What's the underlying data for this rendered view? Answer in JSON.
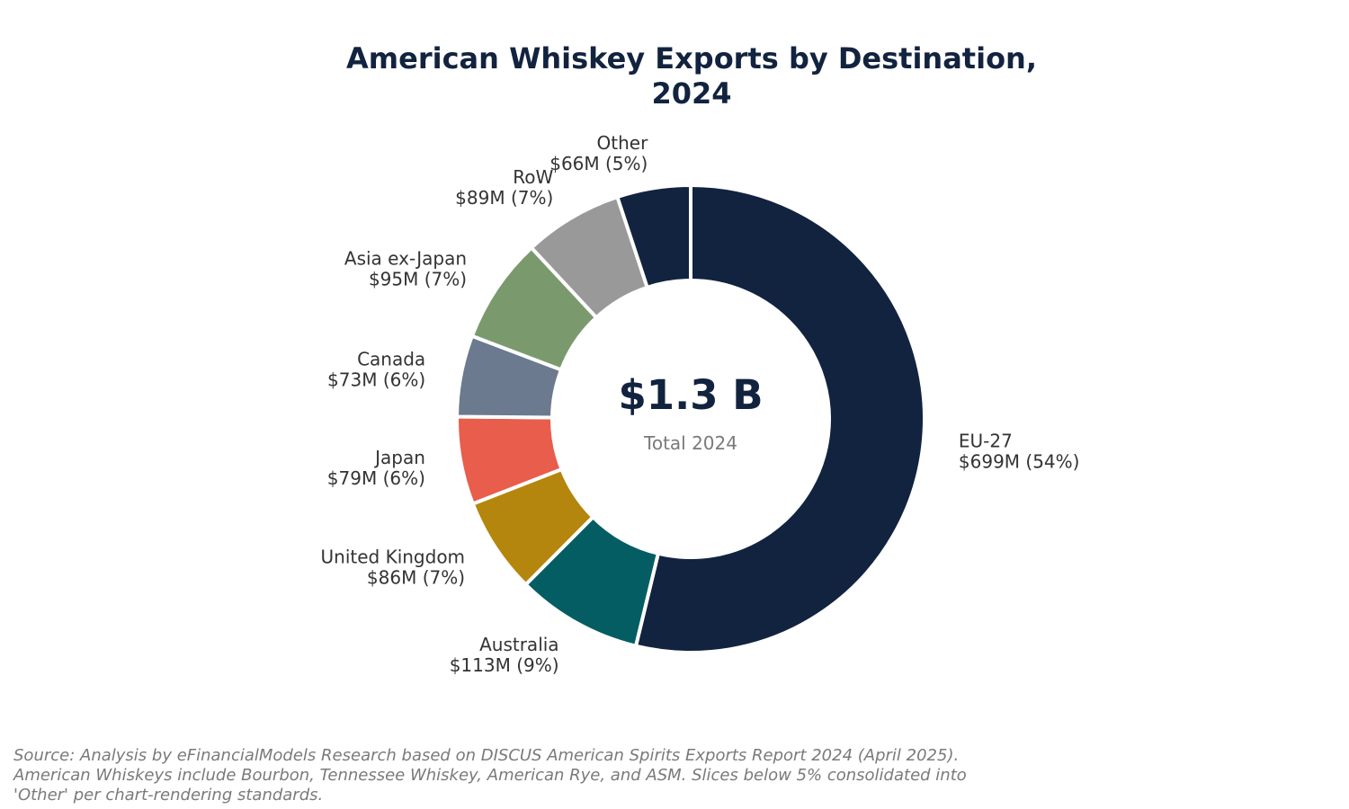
{
  "chart_data": {
    "type": "pie",
    "title_line1": "American Whiskey Exports by Destination,",
    "title_line2": "2024",
    "center_value": "$1.3 B",
    "center_label": "Total 2024",
    "unit": "$M",
    "slices": [
      {
        "name": "EU-27",
        "value": 699,
        "value_label": "$699M (54%)",
        "color": "#12233f"
      },
      {
        "name": "Australia",
        "value": 113,
        "value_label": "$113M (9%)",
        "color": "#045d63"
      },
      {
        "name": "United Kingdom",
        "value": 86,
        "value_label": "$86M (7%)",
        "color": "#b5860d"
      },
      {
        "name": "Japan",
        "value": 79,
        "value_label": "$79M (6%)",
        "color": "#e85d4c"
      },
      {
        "name": "Canada",
        "value": 73,
        "value_label": "$73M (6%)",
        "color": "#6b7a8e"
      },
      {
        "name": "Asia ex-Japan",
        "value": 95,
        "value_label": "$95M (7%)",
        "color": "#7a9a6e"
      },
      {
        "name": "RoW",
        "value": 89,
        "value_label": "$89M (7%)",
        "color": "#999999"
      },
      {
        "name": "Other",
        "value": 66,
        "value_label": "$66M (5%)",
        "color": "#12233f"
      }
    ],
    "source_note": "Source: Analysis by eFinancialModels Research based on DISCUS American Spirits Exports Report 2024 (April 2025). American Whiskeys include Bourbon, Tennessee Whiskey, American Rye, and ASM. Slices below 5% consolidated into 'Other' per chart-rendering standards."
  }
}
